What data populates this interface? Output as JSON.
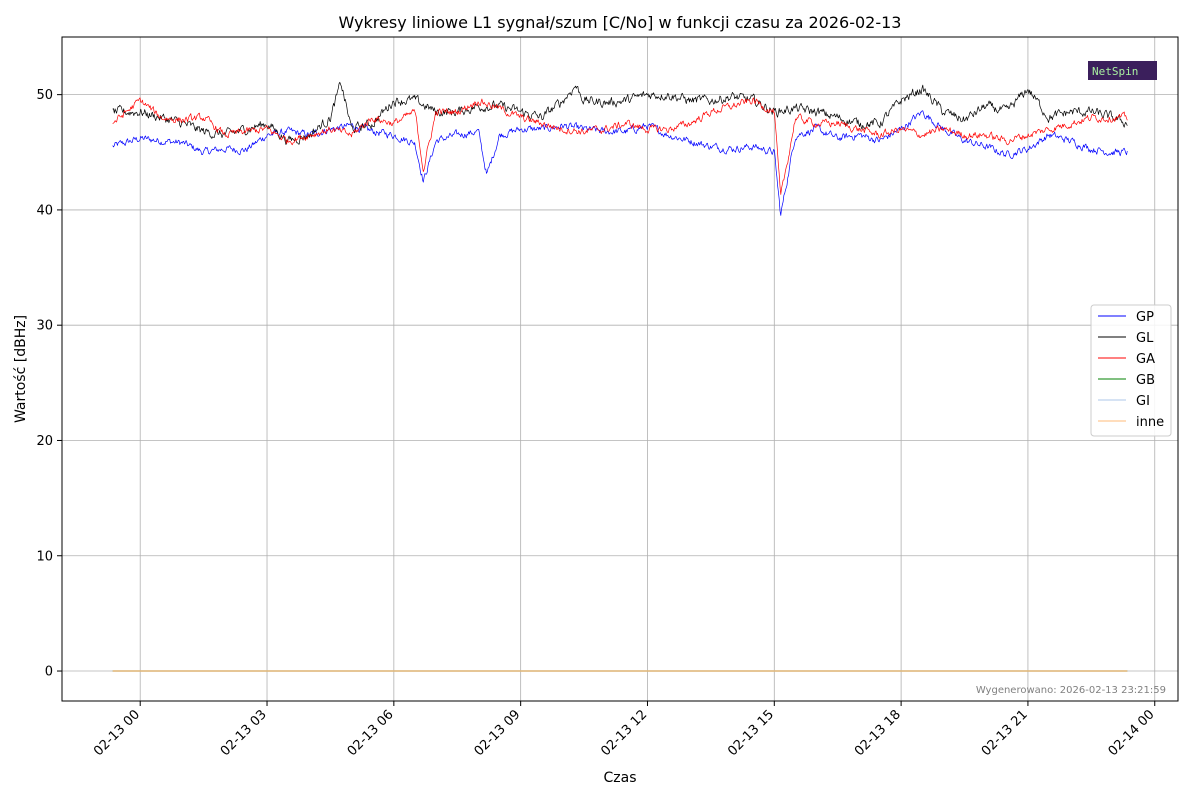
{
  "chart_data": {
    "type": "line",
    "title": "Wykresy liniowe L1 sygnał/szum [C/No] w funkcji czasu za 2026-02-13",
    "xlabel": "Czas",
    "ylabel": "Wartość [dBHz]",
    "x_ticks": [
      "02-13 00",
      "02-13 03",
      "02-13 06",
      "02-13 09",
      "02-13 12",
      "02-13 15",
      "02-13 18",
      "02-13 21",
      "02-14 00"
    ],
    "x_tick_hours": [
      0,
      3,
      6,
      9,
      12,
      15,
      18,
      21,
      24
    ],
    "x_range_hours": [
      -1.85,
      24.55
    ],
    "data_x_range_hours": [
      -0.65,
      23.35
    ],
    "ylim": [
      -2.6,
      55
    ],
    "y_ticks": [
      0,
      10,
      20,
      30,
      40,
      50
    ],
    "grid": true,
    "legend_position": "center-right",
    "series": [
      {
        "name": "GP",
        "color": "#0000ff",
        "x": [
          -0.65,
          0,
          0.5,
          1,
          1.5,
          2,
          2.5,
          3,
          3.5,
          4,
          4.5,
          5,
          5.5,
          6,
          6.5,
          6.7,
          7,
          7.5,
          8,
          8.2,
          8.5,
          9,
          9.5,
          10,
          10.5,
          11,
          11.5,
          12,
          12.5,
          13,
          13.5,
          14,
          14.5,
          15,
          15.15,
          15.5,
          16,
          16.5,
          17,
          17.5,
          18,
          18.5,
          19,
          19.5,
          20,
          20.5,
          21,
          21.5,
          22,
          22.5,
          23,
          23.35
        ],
        "values": [
          45.5,
          46.2,
          46.0,
          45.8,
          45.0,
          45.3,
          45.2,
          46.5,
          46.8,
          46.5,
          47.0,
          47.3,
          46.8,
          46.5,
          45.8,
          42.5,
          46.0,
          46.5,
          46.8,
          43.0,
          46.5,
          47.0,
          47.0,
          47.3,
          47.0,
          46.8,
          46.8,
          47.3,
          46.5,
          46.0,
          45.5,
          45.3,
          45.5,
          45.0,
          39.5,
          46.5,
          47.0,
          46.2,
          46.5,
          46.0,
          47.0,
          48.5,
          47.0,
          46.0,
          45.5,
          44.8,
          45.3,
          46.5,
          46.0,
          45.3,
          45.0,
          45.0
        ]
      },
      {
        "name": "GL",
        "color": "#000000",
        "x": [
          -0.65,
          0,
          0.5,
          1,
          1.5,
          2,
          2.5,
          3,
          3.5,
          4,
          4.5,
          4.75,
          5,
          5.5,
          6,
          6.5,
          7,
          7.5,
          8,
          8.5,
          9,
          9.5,
          10,
          10.3,
          10.5,
          11,
          11.5,
          12,
          12.5,
          13,
          13.5,
          14,
          14.5,
          15,
          15.5,
          16,
          16.5,
          17,
          17.5,
          18,
          18.5,
          19,
          19.5,
          20,
          20.5,
          21,
          21.5,
          22,
          22.5,
          23,
          23.35
        ],
        "values": [
          48.5,
          48.5,
          48.0,
          47.5,
          46.8,
          46.5,
          47.0,
          47.5,
          46.0,
          46.5,
          48.0,
          51.0,
          47.0,
          47.5,
          49.5,
          49.5,
          48.5,
          48.5,
          49.0,
          49.0,
          48.5,
          48.0,
          49.5,
          50.8,
          49.5,
          49.3,
          49.5,
          50.0,
          50.0,
          49.5,
          49.5,
          49.8,
          49.5,
          48.5,
          48.8,
          48.5,
          48.0,
          47.5,
          47.5,
          49.5,
          50.5,
          48.5,
          47.8,
          49.0,
          48.5,
          50.5,
          48.0,
          48.5,
          48.5,
          48.0,
          47.5
        ]
      },
      {
        "name": "GA",
        "color": "#ff0000",
        "x": [
          -0.65,
          0,
          0.5,
          1,
          1.5,
          2,
          2.5,
          3,
          3.5,
          4,
          4.5,
          5,
          5.5,
          6,
          6.5,
          6.7,
          7,
          7.5,
          8,
          8.5,
          9,
          9.5,
          10,
          10.5,
          11,
          11.5,
          12,
          12.5,
          13,
          13.5,
          14,
          14.5,
          15,
          15.15,
          15.5,
          16,
          16.5,
          17,
          17.5,
          18,
          18.5,
          19,
          19.5,
          20,
          20.5,
          21,
          21.5,
          22,
          22.5,
          23,
          23.35
        ],
        "values": [
          47.5,
          49.5,
          48.0,
          47.8,
          48.0,
          46.5,
          46.8,
          47.0,
          46.0,
          46.5,
          47.0,
          46.5,
          48.0,
          47.5,
          48.5,
          43.5,
          48.5,
          48.5,
          49.5,
          48.8,
          48.0,
          47.5,
          47.0,
          46.8,
          47.0,
          47.5,
          47.0,
          47.0,
          47.5,
          48.5,
          49.0,
          49.5,
          48.5,
          41.0,
          48.0,
          47.5,
          47.5,
          47.0,
          46.5,
          47.0,
          46.5,
          47.0,
          46.5,
          46.5,
          46.0,
          46.5,
          47.0,
          47.5,
          48.0,
          48.0,
          48.0
        ]
      },
      {
        "name": "GB",
        "color": "#008000",
        "x": [
          -0.65,
          23.35
        ],
        "values": [
          0,
          0
        ]
      },
      {
        "name": "GI",
        "color": "#aec7e8",
        "x": [
          -0.65,
          23.35
        ],
        "values": [
          0,
          0
        ]
      },
      {
        "name": "inne",
        "color": "#ffbb78",
        "x": [
          -0.65,
          23.35
        ],
        "values": [
          0,
          0
        ]
      }
    ],
    "footer": "Wygenerowano: 2026-02-13 23:21:59",
    "logo_text": "NetSpin",
    "logo_bg": "#3b1f5c",
    "logo_color": "#a8f0a0"
  }
}
